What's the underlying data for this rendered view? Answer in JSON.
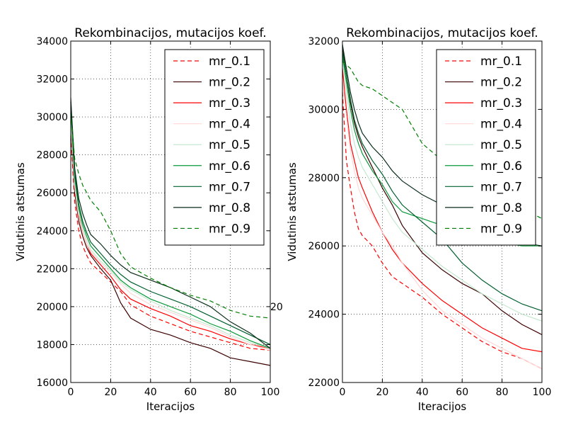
{
  "chart_data": [
    {
      "type": "line",
      "title": "Rekombinacijos, mutacijos koef.",
      "xlabel": "Iteracijos",
      "ylabel": "Vidutinis atstumas",
      "xlim": [
        0,
        100
      ],
      "ylim": [
        16000,
        34000
      ],
      "xticks": [
        0,
        20,
        40,
        60,
        80,
        100
      ],
      "yticks": [
        16000,
        18000,
        20000,
        22000,
        24000,
        26000,
        28000,
        30000,
        32000,
        34000
      ],
      "grid": true,
      "legend_position": "top-right",
      "series": [
        {
          "name": "mr_0.1",
          "color": "#ff0000",
          "dash": true,
          "x": [
            0,
            2,
            4,
            6,
            8,
            10,
            15,
            20,
            25,
            30,
            40,
            50,
            60,
            70,
            80,
            90,
            100
          ],
          "y": [
            29000,
            25500,
            24000,
            23200,
            22700,
            22300,
            21800,
            21300,
            20800,
            20100,
            19500,
            19100,
            18700,
            18400,
            18100,
            17800,
            17700
          ]
        },
        {
          "name": "mr_0.2",
          "color": "#3b0000",
          "dash": false,
          "x": [
            0,
            2,
            4,
            6,
            8,
            10,
            15,
            20,
            25,
            30,
            40,
            50,
            60,
            70,
            80,
            90,
            100
          ],
          "y": [
            29500,
            26000,
            24500,
            23700,
            23100,
            22700,
            22000,
            21400,
            20200,
            19400,
            18800,
            18500,
            18100,
            17800,
            17300,
            17100,
            16900
          ]
        },
        {
          "name": "mr_0.3",
          "color": "#ff0000",
          "dash": false,
          "x": [
            0,
            2,
            4,
            6,
            8,
            10,
            15,
            20,
            25,
            30,
            40,
            50,
            60,
            70,
            80,
            90,
            100
          ],
          "y": [
            30000,
            26500,
            24800,
            23900,
            23300,
            22800,
            22200,
            21600,
            20900,
            20400,
            19900,
            19500,
            19000,
            18700,
            18300,
            18000,
            17800
          ]
        },
        {
          "name": "mr_0.4",
          "color": "#ffd8d8",
          "dash": false,
          "x": [
            0,
            2,
            4,
            6,
            8,
            10,
            15,
            20,
            25,
            30,
            40,
            50,
            60,
            70,
            80,
            90,
            100
          ],
          "y": [
            29800,
            26300,
            24700,
            23900,
            23300,
            22900,
            22300,
            21800,
            21200,
            20700,
            20100,
            19700,
            19300,
            18900,
            18400,
            18000,
            17700
          ]
        },
        {
          "name": "mr_0.5",
          "color": "#c4e8d0",
          "dash": false,
          "x": [
            0,
            2,
            4,
            6,
            8,
            10,
            15,
            20,
            25,
            30,
            40,
            50,
            60,
            70,
            80,
            90,
            100
          ],
          "y": [
            30200,
            26600,
            25000,
            24100,
            23500,
            23000,
            22400,
            21900,
            21300,
            20900,
            20300,
            19800,
            19400,
            19000,
            18500,
            18100,
            17800
          ]
        },
        {
          "name": "mr_0.6",
          "color": "#0a9a3a",
          "dash": false,
          "x": [
            0,
            2,
            4,
            6,
            8,
            10,
            15,
            20,
            25,
            30,
            40,
            50,
            60,
            70,
            80,
            90,
            100
          ],
          "y": [
            30500,
            26800,
            25200,
            24300,
            23700,
            23200,
            22600,
            22000,
            21400,
            21000,
            20400,
            20000,
            19600,
            19100,
            18700,
            18200,
            17800
          ]
        },
        {
          "name": "mr_0.7",
          "color": "#006030",
          "dash": false,
          "x": [
            0,
            2,
            4,
            6,
            8,
            10,
            15,
            20,
            25,
            30,
            40,
            50,
            60,
            70,
            80,
            90,
            100
          ],
          "y": [
            30800,
            27000,
            25400,
            24500,
            23900,
            23400,
            22800,
            22200,
            21700,
            21300,
            20800,
            20400,
            20000,
            19500,
            19000,
            18500,
            18000
          ]
        },
        {
          "name": "mr_0.8",
          "color": "#0a2e1a",
          "dash": false,
          "x": [
            0,
            2,
            4,
            6,
            8,
            10,
            15,
            20,
            25,
            30,
            40,
            50,
            60,
            70,
            80,
            90,
            100
          ],
          "y": [
            31000,
            27300,
            25700,
            24900,
            24300,
            23800,
            23300,
            22700,
            22200,
            21800,
            21400,
            21000,
            20500,
            20000,
            19200,
            18600,
            17800
          ]
        },
        {
          "name": "mr_0.9",
          "color": "#008000",
          "dash": true,
          "x": [
            0,
            2,
            4,
            6,
            8,
            10,
            15,
            20,
            25,
            30,
            40,
            50,
            60,
            70,
            80,
            90,
            100
          ],
          "y": [
            30200,
            27800,
            27000,
            26400,
            26000,
            25600,
            25000,
            24000,
            22800,
            22100,
            21500,
            21000,
            20600,
            20300,
            19800,
            19500,
            19400
          ]
        }
      ]
    },
    {
      "type": "line",
      "title": "Rekombinacijos, mutacijos koef.",
      "xlabel": "Iteracijos",
      "ylabel": "Vidutinis atstumas",
      "xlim": [
        0,
        100
      ],
      "ylim": [
        22000,
        32000
      ],
      "xticks": [
        0,
        20,
        40,
        60,
        80,
        100
      ],
      "yticks": [
        22000,
        24000,
        26000,
        28000,
        30000,
        32000
      ],
      "grid": true,
      "legend_position": "top-right",
      "series": [
        {
          "name": "mr_0.1",
          "color": "#ff0000",
          "dash": true,
          "x": [
            0,
            2,
            4,
            6,
            8,
            10,
            15,
            20,
            25,
            30,
            40,
            50,
            60,
            70,
            80,
            90,
            100
          ],
          "y": [
            30500,
            28500,
            27700,
            27000,
            26500,
            26300,
            26000,
            25500,
            25100,
            24900,
            24500,
            24000,
            23600,
            23200,
            22900,
            22700,
            22400
          ]
        },
        {
          "name": "mr_0.2",
          "color": "#3b0000",
          "dash": false,
          "x": [
            0,
            2,
            4,
            6,
            8,
            10,
            15,
            20,
            25,
            30,
            40,
            50,
            60,
            70,
            80,
            90,
            100
          ],
          "y": [
            31800,
            31000,
            30200,
            29600,
            29200,
            28900,
            28300,
            27700,
            27200,
            26600,
            25800,
            25300,
            24900,
            24600,
            24100,
            23700,
            23400
          ]
        },
        {
          "name": "mr_0.3",
          "color": "#ff0000",
          "dash": false,
          "x": [
            0,
            2,
            4,
            6,
            8,
            10,
            15,
            20,
            25,
            30,
            40,
            50,
            60,
            70,
            80,
            90,
            100
          ],
          "y": [
            31200,
            30000,
            29000,
            28500,
            28000,
            27700,
            27000,
            26400,
            25900,
            25500,
            24900,
            24400,
            24000,
            23600,
            23300,
            23000,
            22900
          ]
        },
        {
          "name": "mr_0.4",
          "color": "#ffd8d8",
          "dash": false,
          "x": [
            0,
            2,
            4,
            6,
            8,
            10,
            15,
            20,
            25,
            30,
            40,
            50,
            60,
            70,
            80,
            90,
            100
          ],
          "y": [
            30800,
            29800,
            28800,
            28200,
            27700,
            27400,
            26900,
            26400,
            26000,
            25500,
            24700,
            24100,
            23700,
            23300,
            23000,
            22700,
            22400
          ]
        },
        {
          "name": "mr_0.5",
          "color": "#c4e8d0",
          "dash": false,
          "x": [
            0,
            2,
            4,
            6,
            8,
            10,
            15,
            20,
            25,
            30,
            40,
            50,
            60,
            70,
            80,
            90,
            100
          ],
          "y": [
            31500,
            30500,
            29600,
            29000,
            28600,
            28300,
            27800,
            27300,
            26800,
            26400,
            25900,
            25400,
            25000,
            24600,
            24300,
            24000,
            23800
          ]
        },
        {
          "name": "mr_0.6",
          "color": "#0a9a3a",
          "dash": false,
          "x": [
            0,
            2,
            4,
            6,
            8,
            10,
            15,
            20,
            25,
            30,
            40,
            50,
            60,
            70,
            80,
            90,
            100
          ],
          "y": [
            31600,
            30800,
            30000,
            29400,
            29000,
            28700,
            28200,
            27800,
            27300,
            27000,
            26800,
            26600,
            26400,
            26200,
            26100,
            26000,
            26000
          ]
        },
        {
          "name": "mr_0.7",
          "color": "#006030",
          "dash": false,
          "x": [
            0,
            2,
            4,
            6,
            8,
            10,
            15,
            20,
            25,
            30,
            40,
            50,
            60,
            70,
            80,
            90,
            100
          ],
          "y": [
            31700,
            31000,
            30300,
            29700,
            29300,
            29000,
            28500,
            28100,
            27600,
            27200,
            26700,
            26200,
            25500,
            25000,
            24600,
            24300,
            24100
          ]
        },
        {
          "name": "mr_0.8",
          "color": "#0a2e1a",
          "dash": false,
          "x": [
            0,
            2,
            4,
            6,
            8,
            10,
            15,
            20,
            25,
            30,
            40,
            50,
            60,
            70,
            80,
            90,
            100
          ],
          "y": [
            31900,
            31200,
            30500,
            30000,
            29600,
            29300,
            28900,
            28600,
            28200,
            27900,
            27500,
            27200,
            26900,
            26600,
            26300,
            26100,
            26000
          ]
        },
        {
          "name": "mr_0.9",
          "color": "#008000",
          "dash": true,
          "x": [
            0,
            2,
            4,
            6,
            8,
            10,
            15,
            20,
            25,
            30,
            40,
            50,
            60,
            70,
            80,
            90,
            100
          ],
          "y": [
            31400,
            31300,
            31200,
            31000,
            30800,
            30700,
            30600,
            30400,
            30200,
            30000,
            29000,
            28500,
            28000,
            27700,
            27400,
            27100,
            26800
          ]
        }
      ]
    }
  ],
  "stray_label": "20"
}
